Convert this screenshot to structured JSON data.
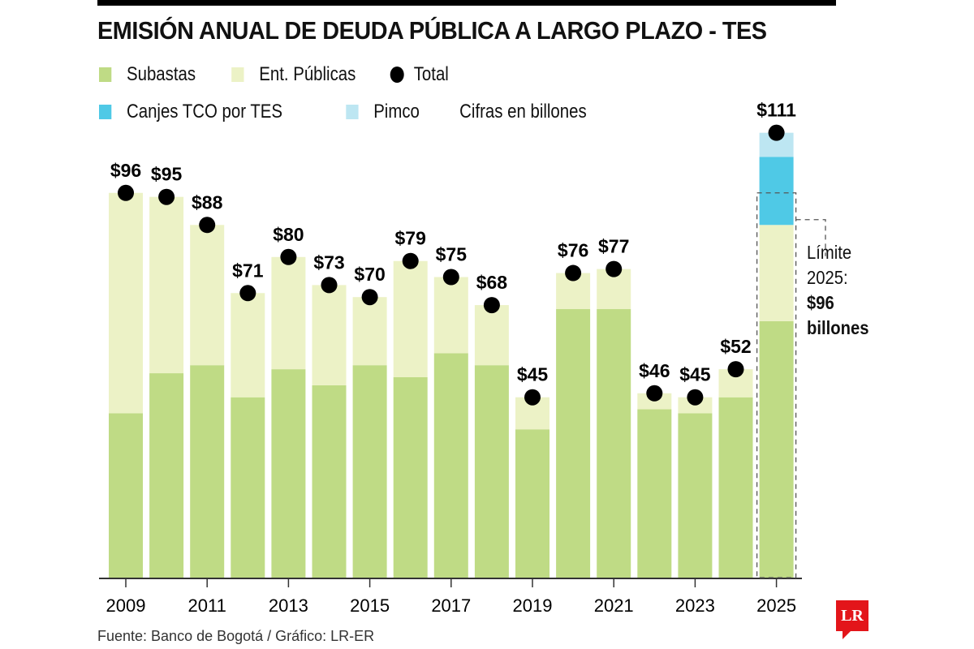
{
  "title": "EMISIÓN ANUAL DE DEUDA PÚBLICA A LARGO PLAZO - TES",
  "legend": {
    "row1": [
      {
        "label": "Subastas",
        "color": "#bfdb85",
        "shape": "square"
      },
      {
        "label": "Ent. Públicas",
        "color": "#ecf2c6",
        "shape": "square"
      },
      {
        "label": "Total",
        "color": "#000000",
        "shape": "dot"
      }
    ],
    "row2": [
      {
        "label": "Canjes TCO por TES",
        "color": "#4fc9e6",
        "shape": "square"
      },
      {
        "label": "Pimco",
        "color": "#bde6f2",
        "shape": "square"
      }
    ],
    "units_note": "Cifras en billones"
  },
  "annotation": {
    "line1": "Límite",
    "line2": "2025:",
    "value": "$96",
    "unit": "billones"
  },
  "source": "Fuente: Banco de Bogotá / Gráfico: LR-ER",
  "logo_text": "LR",
  "chart_data": {
    "type": "bar",
    "stacked": true,
    "title": "EMISIÓN ANUAL DE DEUDA PÚBLICA A LARGO PLAZO - TES",
    "xlabel": "",
    "ylabel": "",
    "units": "billones",
    "categories": [
      "2009",
      "2010",
      "2011",
      "2012",
      "2013",
      "2014",
      "2015",
      "2016",
      "2017",
      "2018",
      "2019",
      "2020",
      "2021",
      "2022",
      "2023",
      "2024",
      "2025"
    ],
    "x_tick_labels": [
      "2009",
      "2011",
      "2013",
      "2015",
      "2017",
      "2019",
      "2021",
      "2023",
      "2025"
    ],
    "series": [
      {
        "name": "Subastas",
        "color": "#bfdb85",
        "values": [
          41,
          51,
          53,
          45,
          52,
          48,
          53,
          50,
          56,
          53,
          37,
          67,
          67,
          42,
          41,
          45,
          64
        ]
      },
      {
        "name": "Ent. Públicas",
        "color": "#ecf2c6",
        "values": [
          55,
          44,
          35,
          26,
          28,
          25,
          17,
          29,
          19,
          15,
          8,
          9,
          10,
          4,
          4,
          7,
          24
        ]
      },
      {
        "name": "Canjes TCO por TES",
        "color": "#4fc9e6",
        "values": [
          0,
          0,
          0,
          0,
          0,
          0,
          0,
          0,
          0,
          0,
          0,
          0,
          0,
          0,
          0,
          0,
          17
        ]
      },
      {
        "name": "Pimco",
        "color": "#bde6f2",
        "values": [
          0,
          0,
          0,
          0,
          0,
          0,
          0,
          0,
          0,
          0,
          0,
          0,
          0,
          0,
          0,
          0,
          6
        ]
      }
    ],
    "totals": [
      96,
      95,
      88,
      71,
      80,
      73,
      70,
      79,
      75,
      68,
      45,
      76,
      77,
      46,
      45,
      52,
      111
    ],
    "total_labels": [
      "$96",
      "$95",
      "$88",
      "$71",
      "$80",
      "$73",
      "$70",
      "$79",
      "$75",
      "$68",
      "$45",
      "$76",
      "$77",
      "$46",
      "$45",
      "$52",
      "$111"
    ],
    "limit_2025": 96,
    "ylim": [
      0,
      115
    ],
    "grid": false,
    "legend_position": "top-left"
  }
}
